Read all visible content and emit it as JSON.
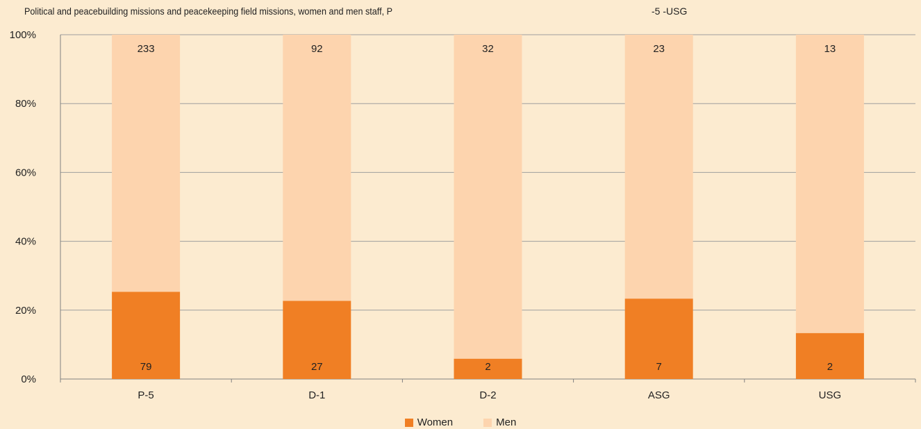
{
  "chart_data": {
    "type": "bar",
    "stacked": "percent",
    "title_part1": "Political and peacebuilding missions and peacekeeping field missions, women and men staff, P",
    "title_part2": "-5 -USG",
    "categories": [
      "P-5",
      "D-1",
      "D-2",
      "ASG",
      "USG"
    ],
    "series": [
      {
        "name": "Women",
        "values": [
          79,
          27,
          2,
          7,
          2
        ],
        "color": "#f07f24"
      },
      {
        "name": "Men",
        "values": [
          233,
          92,
          32,
          23,
          13
        ],
        "color": "#fdd4ae"
      }
    ],
    "yticks": [
      "0%",
      "20%",
      "40%",
      "60%",
      "80%",
      "100%"
    ],
    "ylim": [
      0,
      100
    ],
    "grid": true,
    "legend_position": "bottom"
  }
}
